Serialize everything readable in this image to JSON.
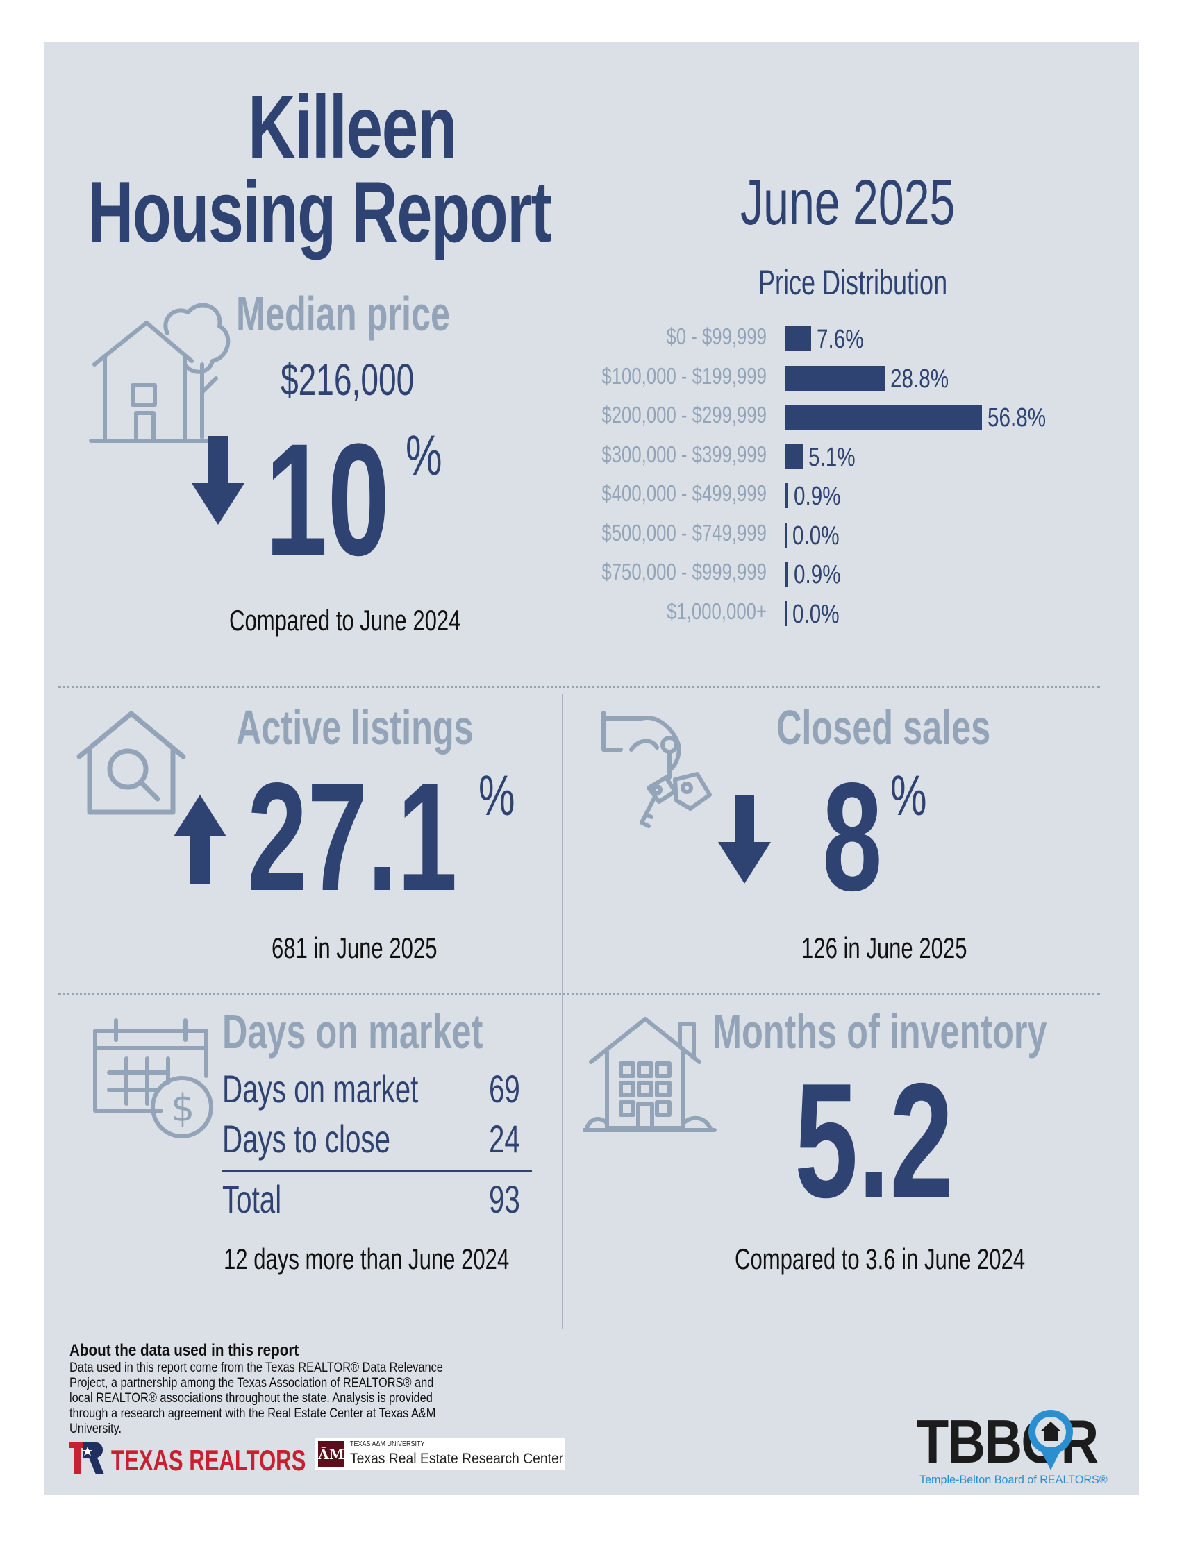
{
  "header": {
    "city": "Killeen",
    "report_title": "Housing Report",
    "period": "June 2025"
  },
  "median_price": {
    "heading": "Median price",
    "value": "$216,000",
    "change": "10",
    "percent_sign": "%",
    "direction": "down",
    "comparison": "Compared to June 2024",
    "icon": "house-tree-icon"
  },
  "price_distribution": {
    "title": "Price Distribution"
  },
  "chart_data": {
    "type": "bar",
    "orientation": "horizontal",
    "title": "Price Distribution",
    "categories": [
      "$0 - $99,999",
      "$100,000 - $199,999",
      "$200,000 - $299,999",
      "$300,000 - $399,999",
      "$400,000 - $499,999",
      "$500,000 - $749,999",
      "$750,000 - $999,999",
      "$1,000,000+"
    ],
    "values": [
      7.6,
      28.8,
      56.8,
      5.1,
      0.9,
      0.0,
      0.9,
      0.0
    ],
    "labels": [
      "7.6%",
      "28.8%",
      "56.8%",
      "5.1%",
      "0.9%",
      "0.0%",
      "0.9%",
      "0.0%"
    ],
    "color": "#2f4372"
  },
  "active_listings": {
    "heading": "Active listings",
    "change": "27.1",
    "percent_sign": "%",
    "direction": "up",
    "caption": "681 in June 2025",
    "icon": "house-magnifier-icon"
  },
  "closed_sales": {
    "heading": "Closed sales",
    "change": "8",
    "percent_sign": "%",
    "direction": "down",
    "caption": "126 in June 2025",
    "icon": "hand-keys-icon"
  },
  "days_on_market": {
    "heading": "Days on market",
    "rows": [
      {
        "label": "Days on market",
        "value": "69"
      },
      {
        "label": "Days to close",
        "value": "24"
      }
    ],
    "total_label": "Total",
    "total_value": "93",
    "caption": "12 days more than June 2024",
    "icon": "calendar-dollar-icon"
  },
  "months_inventory": {
    "heading": "Months of inventory",
    "value": "5.2",
    "caption": "Compared to 3.6 in June 2024",
    "icon": "apartment-building-icon"
  },
  "footer": {
    "about_heading": "About the data used in this report",
    "about_text": "Data used in this report come from the Texas REALTOR® Data Relevance Project, a partnership among the Texas Association of REALTORS® and local REALTOR® associations throughout the state. Analysis is provided through a research agreement with the Real Estate Center at Texas A&M University.",
    "texas_realtors": "TEXAS REALTORS",
    "tamu_small": "TEXAS A&M UNIVERSITY",
    "tamu_center": "Texas Real Estate Research Center",
    "tbbor_logo": "TBBOR",
    "tbbor_tagline": "Temple-Belton Board of REALTORS®"
  },
  "colors": {
    "navy": "#2f4372",
    "muted": "#93a4b8",
    "background": "#dbe0e7",
    "tbbor_blue": "#2a8fd0"
  }
}
